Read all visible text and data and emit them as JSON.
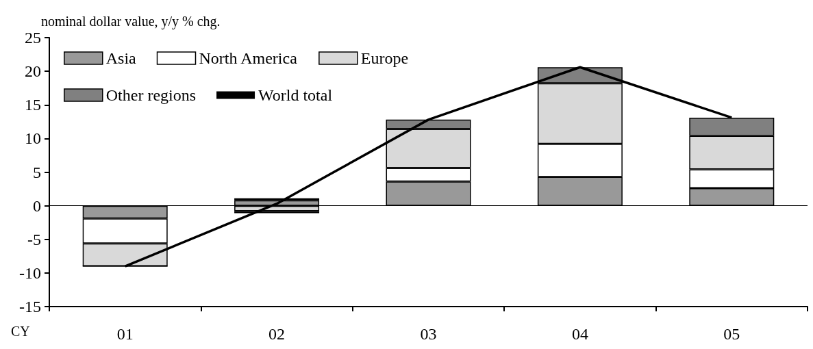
{
  "chart_data": {
    "type": "bar",
    "stacked": true,
    "ylabel": "nominal dollar value, y/y % chg.",
    "xlabel": "CY",
    "categories": [
      "01",
      "02",
      "03",
      "04",
      "05"
    ],
    "series": [
      {
        "name": "Asia",
        "color": "#999999",
        "values": [
          -1.9,
          0.8,
          3.6,
          4.3,
          2.6
        ]
      },
      {
        "name": "North America",
        "color": "#ffffff",
        "values": [
          -3.7,
          0.3,
          2.0,
          4.9,
          2.8
        ]
      },
      {
        "name": "Europe",
        "color": "#d9d9d9",
        "values": [
          -3.4,
          -0.8,
          5.8,
          9.0,
          5.0
        ]
      },
      {
        "name": "Other regions",
        "color": "#808080",
        "values": [
          0,
          -0.3,
          1.4,
          2.4,
          2.7
        ]
      },
      {
        "name": "World total",
        "type": "line",
        "color": "#000000",
        "values": [
          -9.0,
          0.3,
          12.8,
          20.6,
          13.1
        ]
      }
    ],
    "ylim": [
      -15,
      25
    ],
    "yticks": [
      -15,
      -10,
      -5,
      0,
      5,
      10,
      15,
      20,
      25
    ],
    "ref_lines": [
      {
        "axis": "y",
        "value": 0,
        "color": "#000000"
      }
    ],
    "grid": false,
    "legend": "top left",
    "marker": "none"
  }
}
